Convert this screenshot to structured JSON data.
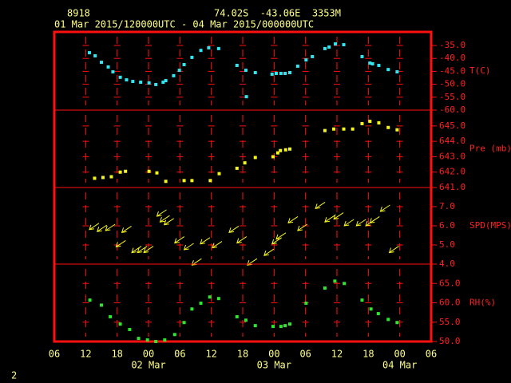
{
  "header": {
    "station": "8918",
    "location": "74.02S  -43.06E  3353M",
    "period": "01 Mar 2015/120000UTC - 04 Mar 2015/000000UTC"
  },
  "page_number": "2",
  "chart_data": [
    {
      "type": "scatter",
      "ylabel": "T(C)",
      "color": "#33e5f0",
      "xlim": [
        0,
        72
      ],
      "ylim": [
        -60,
        -29.75
      ],
      "yticks": [
        {
          "value": -35,
          "label": "-35.0"
        },
        {
          "value": -40,
          "label": "-40.0"
        },
        {
          "value": -45,
          "label": "-45.0"
        },
        {
          "value": -50,
          "label": "-50.0"
        },
        {
          "value": -55,
          "label": "-55.0"
        },
        {
          "value": -60,
          "label": "-60.0"
        }
      ],
      "x": [
        6.7,
        7.8,
        9.0,
        10.3,
        11.2,
        12.6,
        13.8,
        15.0,
        16.5,
        18.1,
        19.4,
        20.8,
        21.3,
        22.8,
        23.9,
        24.8,
        26.3,
        28.0,
        29.5,
        31.4,
        34.9,
        36.6,
        36.7,
        38.4,
        41.6,
        42.4,
        43.3,
        44.1,
        45.0,
        46.5,
        48.1,
        49.3,
        51.7,
        52.5,
        53.7,
        55.3,
        58.8,
        60.3,
        60.8,
        62.0,
        63.8,
        65.5
      ],
      "values": [
        -37.8,
        -39,
        -41.5,
        -43.3,
        -45.2,
        -47.3,
        -48.3,
        -48.9,
        -49.2,
        -49.5,
        -50.1,
        -49.2,
        -48.6,
        -46.7,
        -44.6,
        -42.4,
        -39.6,
        -36.9,
        -35.9,
        -36.2,
        -42.7,
        -44.6,
        -54.8,
        -45.5,
        -46.1,
        -45.8,
        -45.8,
        -45.8,
        -45.5,
        -43,
        -40.6,
        -39.3,
        -36.2,
        -35.6,
        -34.4,
        -34.7,
        -39.3,
        -41.8,
        -42.1,
        -42.7,
        -44.3,
        -45.2
      ]
    },
    {
      "type": "scatter",
      "ylabel": "Pre (mb)",
      "color": "#f5f51e",
      "xlim": [
        0,
        72
      ],
      "ylim": [
        641,
        646.03
      ],
      "yticks": [
        {
          "value": 645,
          "label": "645.0"
        },
        {
          "value": 644,
          "label": "644.0"
        },
        {
          "value": 643,
          "label": "643.0"
        },
        {
          "value": 642,
          "label": "642.0"
        },
        {
          "value": 641,
          "label": "641.0"
        }
      ],
      "x": [
        7.7,
        9.3,
        10.9,
        12.6,
        13.6,
        18.1,
        19.6,
        21.3,
        24.8,
        26.3,
        29.8,
        31.5,
        34.9,
        36.4,
        38.4,
        41.8,
        42.7,
        43.2,
        44.2,
        45.0,
        51.7,
        53.4,
        55.3,
        57.0,
        58.8,
        60.3,
        62.0,
        63.8,
        65.5
      ],
      "values": [
        641.6,
        641.65,
        641.7,
        642.0,
        642.05,
        642.05,
        641.95,
        641.4,
        641.45,
        641.45,
        641.45,
        641.9,
        642.25,
        642.6,
        642.95,
        643.0,
        643.25,
        643.4,
        643.45,
        643.5,
        644.7,
        644.8,
        644.8,
        644.8,
        645.15,
        645.3,
        645.2,
        644.9,
        644.75
      ]
    },
    {
      "type": "wind",
      "ylabel": "SPD(MPS)",
      "color": "#f5f51e",
      "xlim": [
        0,
        72
      ],
      "ylim": [
        4,
        8
      ],
      "yticks": [
        {
          "value": 7,
          "label": "7.0"
        },
        {
          "value": 6,
          "label": "6.0"
        },
        {
          "value": 5,
          "label": "5.0"
        },
        {
          "value": 4,
          "label": "4.0"
        }
      ],
      "x": [
        6.7,
        8.2,
        9.8,
        11.8,
        12.9,
        14.8,
        15.9,
        17.1,
        19.6,
        20.2,
        21.0,
        23.0,
        24.8,
        26.3,
        27.9,
        30.2,
        33.4,
        34.9,
        36.9,
        40.1,
        41.6,
        42.4,
        44.7,
        46.5,
        49.9,
        51.7,
        53.4,
        55.4,
        57.7,
        59.5,
        60.3,
        62.3,
        64.0
      ],
      "values": [
        5.8,
        5.7,
        5.75,
        4.9,
        5.65,
        4.6,
        4.6,
        4.6,
        6.5,
        6.2,
        6.05,
        5.1,
        4.75,
        3.95,
        5.05,
        4.85,
        5.65,
        5.1,
        3.95,
        4.45,
        5.05,
        5.3,
        6.15,
        5.75,
        6.9,
        6.2,
        6.35,
        6.0,
        6.0,
        6.0,
        6.15,
        6.75,
        4.6
      ]
    },
    {
      "type": "scatter",
      "ylabel": "RH(%)",
      "color": "#2ee62e",
      "xlim": [
        0,
        72
      ],
      "ylim": [
        50,
        70
      ],
      "yticks": [
        {
          "value": 65,
          "label": "65.0"
        },
        {
          "value": 60,
          "label": "60.0"
        },
        {
          "value": 55,
          "label": "55.0"
        },
        {
          "value": 50,
          "label": "50.0"
        }
      ],
      "x": [
        6.8,
        9.0,
        10.7,
        12.6,
        14.4,
        16.1,
        17.8,
        19.4,
        21.1,
        23.0,
        24.8,
        26.3,
        28.0,
        29.7,
        31.4,
        34.9,
        36.6,
        38.4,
        41.8,
        43.3,
        44.1,
        45.0,
        48.1,
        51.7,
        53.6,
        55.4,
        58.8,
        60.5,
        61.9,
        63.8,
        65.5
      ],
      "values": [
        60.7,
        59.4,
        56.4,
        54.5,
        53.1,
        50.8,
        50.4,
        50.0,
        50.4,
        51.8,
        54.9,
        58.4,
        59.9,
        61.5,
        61.1,
        56.4,
        55.5,
        54.1,
        53.9,
        53.9,
        54.1,
        54.5,
        59.9,
        63.8,
        65.6,
        65.0,
        60.7,
        58.4,
        57.2,
        55.7,
        54.9
      ],
      "xticks": [
        {
          "value": 0,
          "label": "06"
        },
        {
          "value": 6,
          "label": "12"
        },
        {
          "value": 12,
          "label": "18"
        },
        {
          "value": 18,
          "label": "00"
        },
        {
          "value": 24,
          "label": "06"
        },
        {
          "value": 30,
          "label": "12"
        },
        {
          "value": 36,
          "label": "18"
        },
        {
          "value": 42,
          "label": "00"
        },
        {
          "value": 48,
          "label": "06"
        },
        {
          "value": 54,
          "label": "12"
        },
        {
          "value": 60,
          "label": "18"
        },
        {
          "value": 66,
          "label": "00"
        },
        {
          "value": 72,
          "label": "06"
        }
      ],
      "day_labels": [
        {
          "value": 18,
          "label": "02 Mar"
        },
        {
          "value": 42,
          "label": "03 Mar"
        },
        {
          "value": 66,
          "label": "04 Mar"
        }
      ]
    }
  ]
}
